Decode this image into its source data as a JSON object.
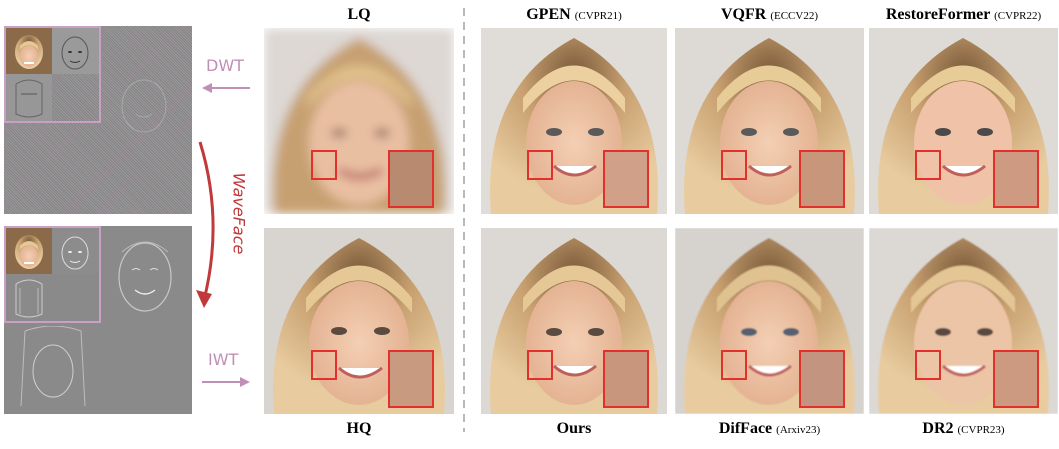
{
  "left_panel": {
    "dwt_label": "DWT",
    "iwt_label": "IWT",
    "waveface_label": "WaveFace"
  },
  "columns": {
    "lq": "LQ",
    "hq": "HQ",
    "gpen": {
      "name": "GPEN",
      "venue": "(CVPR21)"
    },
    "vqfr": {
      "name": "VQFR",
      "venue": "(ECCV22)"
    },
    "restoreformer": {
      "name": "RestoreFormer",
      "venue": "(CVPR22)"
    },
    "ours": {
      "name": "Ours",
      "venue": ""
    },
    "difface": {
      "name": "DifFace",
      "venue": "(Arxiv23)"
    },
    "dr2": {
      "name": "DR2",
      "venue": "(CVPR23)"
    }
  },
  "colors": {
    "zoom_border": "#e2302c",
    "side_text": "#c08fb6",
    "waveface_text": "#c0393b",
    "divider": "#b8b8b8"
  }
}
